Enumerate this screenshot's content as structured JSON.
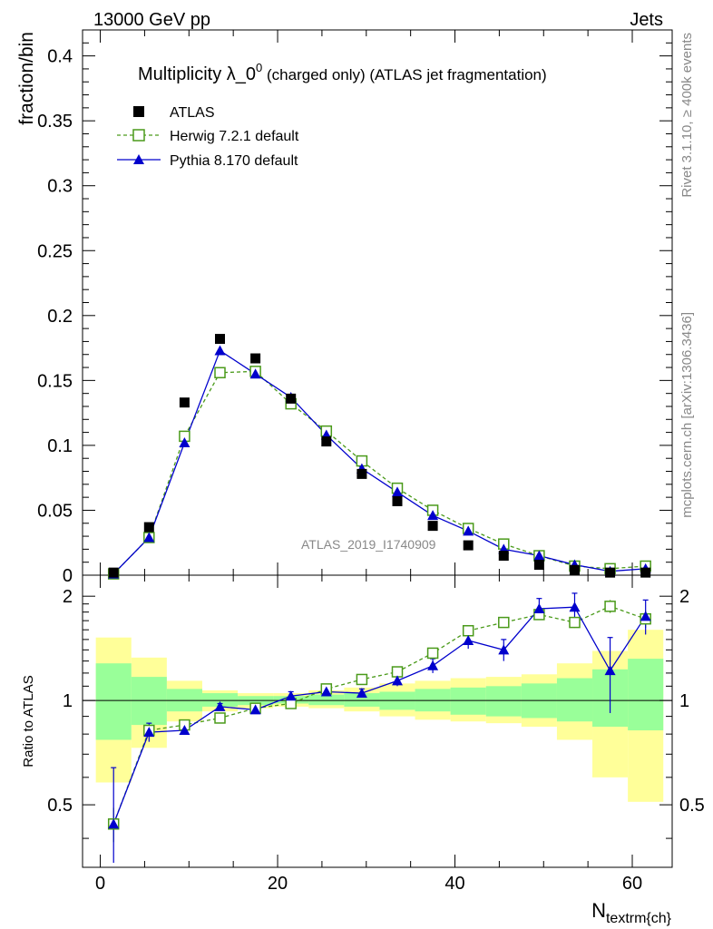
{
  "header": {
    "left": "13000 GeV pp",
    "right": "Jets"
  },
  "side_labels": {
    "rivet": "Rivet 3.1.10, ≥ 400k events",
    "mcplots": "mcplots.cern.ch [arXiv:1306.3436]"
  },
  "colors": {
    "atlas": "#000000",
    "herwig": "#4a9a1a",
    "pythia": "#0000cc",
    "band_inner": "#99ff99",
    "band_outer": "#ffff99"
  },
  "chart_data": [
    {
      "type": "scatter",
      "title_main": "Multiplicity λ_0",
      "title_sup": "0",
      "title_small": " (charged only)",
      "title_tail": " (ATLAS jet fragmentation)",
      "watermark": "ATLAS_2019_I1740909",
      "ylabel": "fraction/bin",
      "xlabel": "N",
      "xlabel_sub": "textrm{ch}",
      "xlim": [
        -2,
        64.5
      ],
      "ylim": [
        0,
        0.42
      ],
      "yticks": [
        0,
        0.05,
        0.1,
        0.15,
        0.2,
        0.25,
        0.3,
        0.35,
        0.4
      ],
      "yticklabels": [
        "0",
        "0.05",
        "0.1",
        "0.15",
        "0.2",
        "0.25",
        "0.3",
        "0.35",
        "0.4"
      ],
      "x": [
        1.5,
        5.5,
        9.5,
        13.5,
        17.5,
        21.5,
        25.5,
        29.5,
        33.5,
        37.5,
        41.5,
        45.5,
        49.5,
        53.5,
        57.5,
        61.5
      ],
      "legend": [
        "ATLAS",
        "Herwig 7.2.1 default",
        "Pythia 8.170 default"
      ],
      "series": [
        {
          "name": "ATLAS",
          "values": [
            0.002,
            0.037,
            0.133,
            0.182,
            0.167,
            0.136,
            0.103,
            0.078,
            0.057,
            0.038,
            0.023,
            0.015,
            0.008,
            0.004,
            0.002,
            0.002
          ]
        },
        {
          "name": "Herwig 7.2.1 default",
          "values": [
            0.001,
            0.029,
            0.107,
            0.156,
            0.157,
            0.132,
            0.111,
            0.088,
            0.067,
            0.05,
            0.036,
            0.024,
            0.015,
            0.007,
            0.005,
            0.007
          ]
        },
        {
          "name": "Pythia 8.170 default",
          "values": [
            0.001,
            0.029,
            0.102,
            0.173,
            0.155,
            0.137,
            0.108,
            0.082,
            0.064,
            0.046,
            0.034,
            0.02,
            0.015,
            0.008,
            0.003,
            0.005
          ]
        }
      ]
    },
    {
      "type": "scatter",
      "ylabel": "Ratio to ATLAS",
      "xlim": [
        -2,
        64.5
      ],
      "ylim": [
        0.33,
        2.3
      ],
      "xticks": [
        0,
        20,
        40,
        60
      ],
      "xticklabels": [
        "0",
        "20",
        "40",
        "60"
      ],
      "yticks": [
        0.5,
        1,
        2
      ],
      "yticklabels": [
        "0.5",
        "1",
        "2"
      ],
      "x": [
        1.5,
        5.5,
        9.5,
        13.5,
        17.5,
        21.5,
        25.5,
        29.5,
        33.5,
        37.5,
        41.5,
        45.5,
        49.5,
        53.5,
        57.5,
        61.5
      ],
      "bin_edges": [
        -0.5,
        3.5,
        7.5,
        11.5,
        15.5,
        19.5,
        23.5,
        27.5,
        31.5,
        35.5,
        39.5,
        43.5,
        47.5,
        51.5,
        55.5,
        59.5,
        63.5
      ],
      "band_inner": [
        [
          0.77,
          1.28
        ],
        [
          0.85,
          1.17
        ],
        [
          0.93,
          1.08
        ],
        [
          0.96,
          1.05
        ],
        [
          0.97,
          1.03
        ],
        [
          0.98,
          1.03
        ],
        [
          0.97,
          1.04
        ],
        [
          0.96,
          1.05
        ],
        [
          0.94,
          1.06
        ],
        [
          0.93,
          1.08
        ],
        [
          0.91,
          1.09
        ],
        [
          0.9,
          1.1
        ],
        [
          0.89,
          1.12
        ],
        [
          0.87,
          1.16
        ],
        [
          0.84,
          1.23
        ],
        [
          0.82,
          1.32
        ]
      ],
      "band_outer": [
        [
          0.58,
          1.52
        ],
        [
          0.73,
          1.33
        ],
        [
          0.87,
          1.14
        ],
        [
          0.93,
          1.07
        ],
        [
          0.95,
          1.05
        ],
        [
          0.96,
          1.05
        ],
        [
          0.95,
          1.07
        ],
        [
          0.93,
          1.09
        ],
        [
          0.9,
          1.12
        ],
        [
          0.88,
          1.14
        ],
        [
          0.87,
          1.16
        ],
        [
          0.86,
          1.17
        ],
        [
          0.84,
          1.19
        ],
        [
          0.77,
          1.28
        ],
        [
          0.6,
          1.39
        ],
        [
          0.51,
          1.6
        ]
      ],
      "series": [
        {
          "name": "Herwig 7.2.1 default",
          "values": [
            0.44,
            0.82,
            0.85,
            0.89,
            0.95,
            0.98,
            1.08,
            1.15,
            1.21,
            1.37,
            1.59,
            1.68,
            1.77,
            1.68,
            1.87,
            1.72
          ],
          "errors": [
            0.05,
            0.02,
            0.01,
            0.01,
            0.01,
            0.01,
            0.01,
            0.01,
            0.02,
            0.02,
            0.03,
            0.04,
            0.05,
            0.06,
            0.08,
            0.1
          ]
        },
        {
          "name": "Pythia 8.170 default",
          "values": [
            0.44,
            0.81,
            0.82,
            0.96,
            0.94,
            1.03,
            1.06,
            1.05,
            1.14,
            1.26,
            1.49,
            1.4,
            1.84,
            1.86,
            1.22,
            1.75
          ],
          "errors": [
            0.2,
            0.05,
            0.02,
            0.02,
            0.02,
            0.03,
            0.02,
            0.03,
            0.04,
            0.06,
            0.08,
            0.1,
            0.13,
            0.18,
            0.3,
            0.2
          ]
        }
      ]
    }
  ]
}
